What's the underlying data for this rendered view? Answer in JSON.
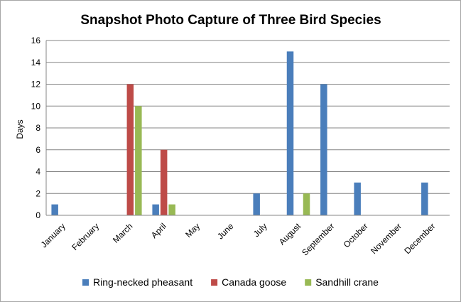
{
  "chart_data": {
    "type": "bar",
    "title": "Snapshot Photo Capture of Three Bird Species",
    "xlabel": "",
    "ylabel": "Days",
    "ylim": [
      0,
      16
    ],
    "yticks": [
      0,
      2,
      4,
      6,
      8,
      10,
      12,
      14,
      16
    ],
    "grid": true,
    "legend_position": "bottom",
    "categories": [
      "January",
      "February",
      "March",
      "April",
      "May",
      "June",
      "July",
      "August",
      "September",
      "October",
      "November",
      "December"
    ],
    "series": [
      {
        "name": "Ring-necked pheasant",
        "color": "#4a7ebb",
        "values": [
          1,
          0,
          0,
          1,
          0,
          0,
          2,
          15,
          12,
          3,
          0,
          3
        ]
      },
      {
        "name": "Canada goose",
        "color": "#be4b48",
        "values": [
          0,
          0,
          12,
          6,
          0,
          0,
          0,
          0,
          0,
          0,
          0,
          0
        ]
      },
      {
        "name": "Sandhill crane",
        "color": "#98b954",
        "values": [
          0,
          0,
          10,
          1,
          0,
          0,
          0,
          2,
          0,
          0,
          0,
          0
        ]
      }
    ]
  }
}
